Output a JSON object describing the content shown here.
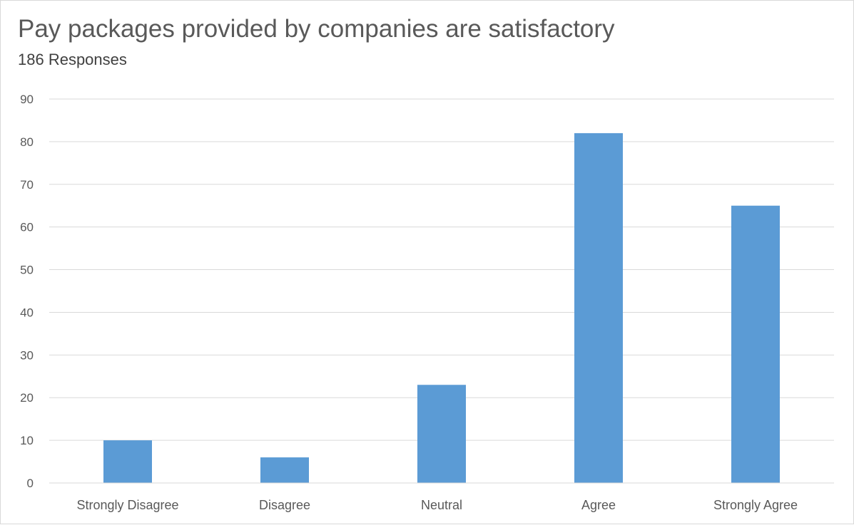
{
  "chart_data": {
    "type": "bar",
    "title": "Pay packages provided by companies are satisfactory",
    "subtitle": "186 Responses",
    "categories": [
      "Strongly Disagree",
      "Disagree",
      "Neutral",
      "Agree",
      "Strongly Agree"
    ],
    "values": [
      10,
      6,
      23,
      82,
      65
    ],
    "ylim": [
      0,
      90
    ],
    "yticks": [
      0,
      10,
      20,
      30,
      40,
      50,
      60,
      70,
      80,
      90
    ],
    "grid": true,
    "legend": "none",
    "bar_color": "#5b9bd5",
    "xlabel": "",
    "ylabel": ""
  }
}
